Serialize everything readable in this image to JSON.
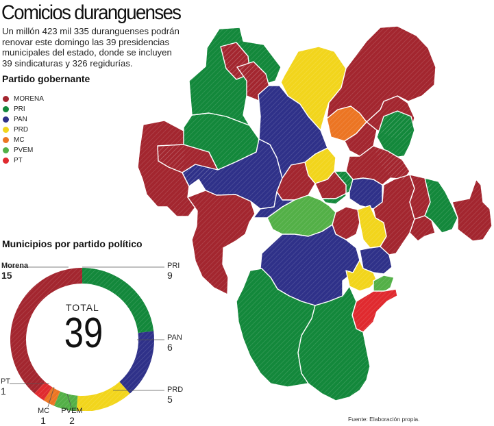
{
  "title": "Comicios duranguenses",
  "intro": "Un millón 423 mil 335 duranguenses podrán renovar este domingo las 39 presidencias municipales del estado, donde se incluyen 39 sindicaturas y 326 regidurías.",
  "legend_title": "Partido gobernante",
  "parties": [
    {
      "key": "morena",
      "name": "MORENA",
      "color": "#a3262f",
      "count": 15
    },
    {
      "key": "pri",
      "name": "PRI",
      "color": "#13883b",
      "count": 9
    },
    {
      "key": "pan",
      "name": "PAN",
      "color": "#2f3189",
      "count": 6
    },
    {
      "key": "prd",
      "name": "PRD",
      "color": "#f2d51c",
      "count": 5
    },
    {
      "key": "mc",
      "name": "MC",
      "color": "#ec7523",
      "count": 1
    },
    {
      "key": "pvem",
      "name": "PVEM",
      "color": "#53b047",
      "count": 2
    },
    {
      "key": "pt",
      "name": "PT",
      "color": "#e02a2f",
      "count": 1
    }
  ],
  "donut_title": "Municipios por partido político",
  "donut_labels": {
    "morena": "Morena",
    "pri": "PRI",
    "pan": "PAN",
    "prd": "PRD",
    "mc": "MC",
    "pvem": "PVEM",
    "pt": "PT"
  },
  "total_label": "TOTAL",
  "total_value": "39",
  "source": "Fuente: Elaboración propia."
}
